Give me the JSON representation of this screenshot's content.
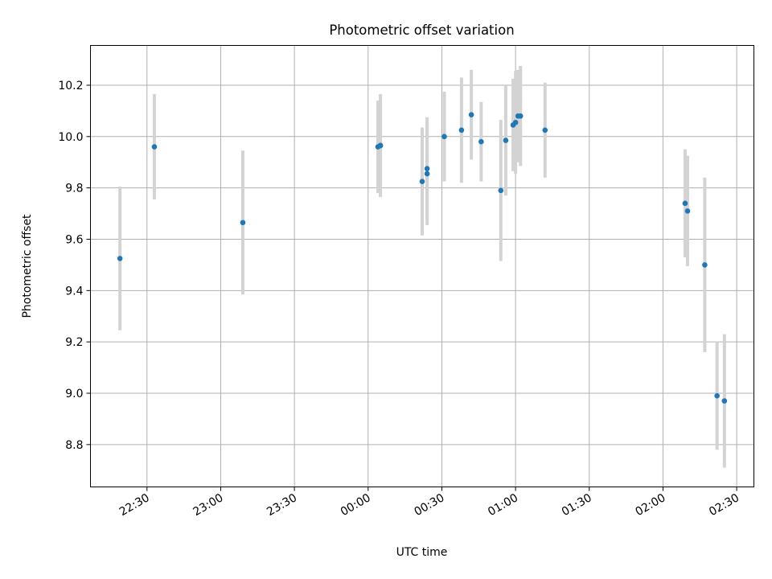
{
  "chart_data": {
    "type": "scatter",
    "title": "Photometric offset variation",
    "xlabel": "UTC time",
    "ylabel": "Photometric offset",
    "xlim": [
      "22:07",
      "02:37"
    ],
    "ylim": [
      8.635,
      10.355
    ],
    "x_ticks": [
      "22:30",
      "23:00",
      "23:30",
      "00:00",
      "00:30",
      "01:00",
      "01:30",
      "02:00",
      "02:30"
    ],
    "y_ticks": [
      "8.8",
      "9.0",
      "9.2",
      "9.4",
      "9.6",
      "9.8",
      "10.0",
      "10.2"
    ],
    "grid": true,
    "colors": {
      "point": "#1f77b4",
      "errorbar": "#d3d3d3",
      "grid": "#b0b0b0"
    },
    "points": [
      {
        "x": "22:19",
        "y": 9.525,
        "yerr": 0.28
      },
      {
        "x": "22:33",
        "y": 9.96,
        "yerr": 0.205
      },
      {
        "x": "23:09",
        "y": 9.665,
        "yerr": 0.28
      },
      {
        "x": "00:04",
        "y": 9.96,
        "yerr": 0.18
      },
      {
        "x": "00:05",
        "y": 9.965,
        "yerr": 0.18
      },
      {
        "x": "00:05",
        "y": 9.965,
        "yerr": 0.2
      },
      {
        "x": "00:22",
        "y": 9.825,
        "yerr": 0.21
      },
      {
        "x": "00:24",
        "y": 9.855,
        "yerr": 0.2
      },
      {
        "x": "00:24",
        "y": 9.875,
        "yerr": 0.2
      },
      {
        "x": "00:31",
        "y": 10.0,
        "yerr": 0.175
      },
      {
        "x": "00:38",
        "y": 10.025,
        "yerr": 0.205
      },
      {
        "x": "00:42",
        "y": 10.085,
        "yerr": 0.175
      },
      {
        "x": "00:46",
        "y": 9.98,
        "yerr": 0.155
      },
      {
        "x": "00:54",
        "y": 9.79,
        "yerr": 0.275
      },
      {
        "x": "00:56",
        "y": 9.985,
        "yerr": 0.215
      },
      {
        "x": "00:59",
        "y": 10.045,
        "yerr": 0.18
      },
      {
        "x": "01:00",
        "y": 10.055,
        "yerr": 0.2
      },
      {
        "x": "01:01",
        "y": 10.08,
        "yerr": 0.18
      },
      {
        "x": "01:02",
        "y": 10.08,
        "yerr": 0.195
      },
      {
        "x": "01:12",
        "y": 10.025,
        "yerr": 0.185
      },
      {
        "x": "02:09",
        "y": 9.74,
        "yerr": 0.21
      },
      {
        "x": "02:10",
        "y": 9.71,
        "yerr": 0.215
      },
      {
        "x": "02:17",
        "y": 9.5,
        "yerr": 0.34
      },
      {
        "x": "02:22",
        "y": 8.99,
        "yerr": 0.21
      },
      {
        "x": "02:25",
        "y": 8.97,
        "yerr": 0.26
      }
    ]
  }
}
